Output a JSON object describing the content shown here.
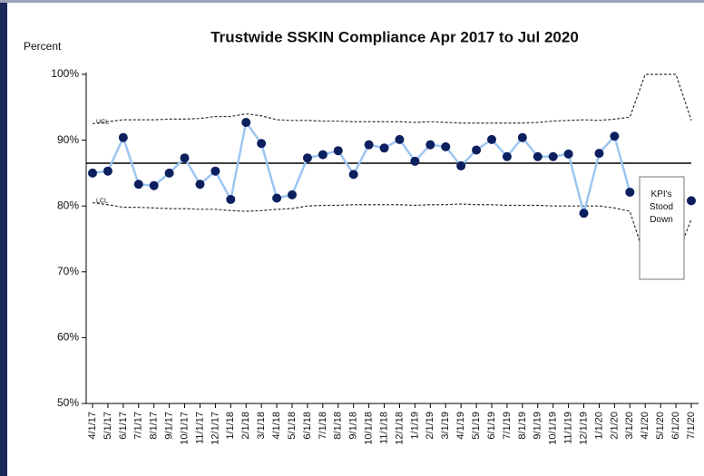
{
  "chart_data": {
    "type": "line",
    "title": "Trustwide SSKIN Compliance Apr 2017 to Jul 2020",
    "y_label": "Percent",
    "categories": [
      "4/1/17",
      "5/1/17",
      "6/1/17",
      "7/1/17",
      "8/1/17",
      "9/1/17",
      "10/1/17",
      "11/1/17",
      "12/1/17",
      "1/1/18",
      "2/1/18",
      "3/1/18",
      "4/1/18",
      "5/1/18",
      "6/1/18",
      "7/1/18",
      "8/1/18",
      "9/1/18",
      "10/1/18",
      "11/1/18",
      "12/1/18",
      "1/1/19",
      "2/1/19",
      "3/1/19",
      "4/1/19",
      "5/1/19",
      "6/1/19",
      "7/1/19",
      "8/1/19",
      "9/1/19",
      "10/1/19",
      "11/1/19",
      "12/1/19",
      "1/1/20",
      "2/1/20",
      "3/1/20",
      "4/1/20",
      "5/1/20",
      "6/1/20",
      "7/1/20"
    ],
    "series": [
      {
        "color": "#9cc6f2",
        "marker_color": "#0c1f5e",
        "values": [
          85,
          85.3,
          90.4,
          83.3,
          83.1,
          85,
          87.3,
          83.3,
          85.3,
          81,
          92.7,
          89.5,
          81.2,
          81.7,
          87.3,
          87.8,
          88.4,
          84.8,
          89.3,
          88.8,
          90.1,
          86.8,
          89.3,
          89,
          86.1,
          88.5,
          90.1,
          87.5,
          90.4,
          87.5,
          87.5,
          87.9,
          78.9,
          88,
          90.6,
          82.1,
          null,
          null,
          null,
          80.8
        ]
      }
    ],
    "center_line": 86.5,
    "control_limits": [
      {
        "name": "UCL",
        "color": "#333333",
        "values": [
          92.5,
          92.8,
          93.1,
          93.1,
          93.1,
          93.2,
          93.2,
          93.3,
          93.6,
          93.6,
          94,
          93.7,
          93.1,
          93,
          93,
          92.9,
          92.9,
          92.8,
          92.8,
          92.8,
          92.8,
          92.7,
          92.8,
          92.7,
          92.6,
          92.6,
          92.6,
          92.6,
          92.6,
          92.7,
          92.9,
          93,
          93.1,
          93,
          93.2,
          93.5,
          100,
          100,
          100,
          93
        ]
      },
      {
        "name": "LCL",
        "color": "#333333",
        "values": [
          80.5,
          80.2,
          79.8,
          79.8,
          79.7,
          79.6,
          79.6,
          79.5,
          79.5,
          79.3,
          79.2,
          79.3,
          79.5,
          79.6,
          80,
          80.1,
          80.1,
          80.2,
          80.2,
          80.2,
          80.2,
          80.1,
          80.2,
          80.2,
          80.3,
          80.2,
          80.2,
          80.1,
          80.1,
          80.1,
          80,
          80,
          80,
          80,
          79.7,
          79.2,
          72,
          72,
          72,
          78
        ]
      }
    ],
    "annotation": "KPI's Stood Down",
    "ylim": [
      50,
      100
    ],
    "yticks": [
      {
        "value": 50,
        "label": "50%"
      },
      {
        "value": 60,
        "label": "60%"
      },
      {
        "value": 70,
        "label": "70%"
      },
      {
        "value": 80,
        "label": "80%"
      },
      {
        "value": 90,
        "label": "90%"
      },
      {
        "value": 100,
        "label": "100%"
      }
    ]
  }
}
